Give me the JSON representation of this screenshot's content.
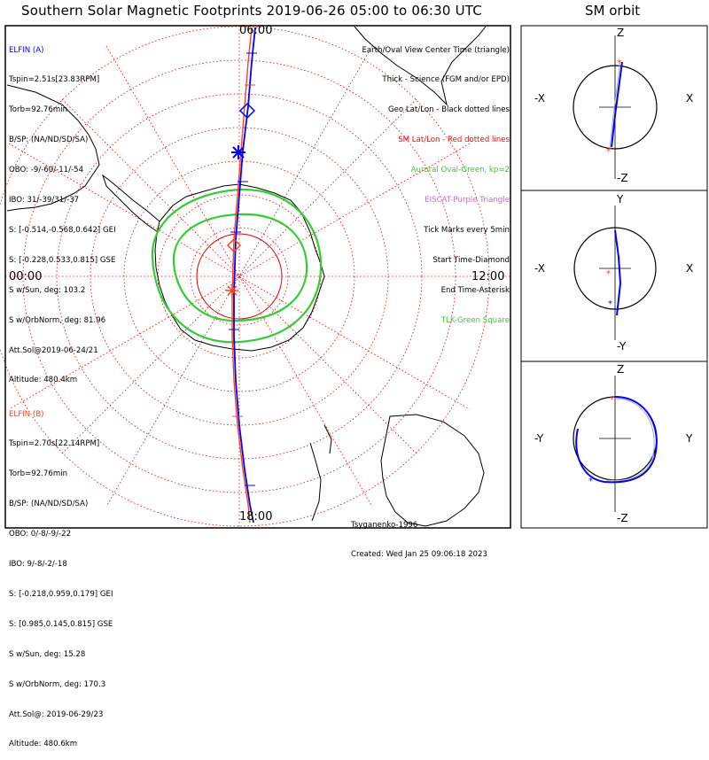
{
  "title": "Southern Solar Magnetic Footprints 2019-06-26 05:00 to 06:30 UTC",
  "orbit_title": "SM orbit",
  "clock_labels": {
    "top": "06:00",
    "left": "00:00",
    "right": "12:00",
    "bottom": "18:00"
  },
  "elfin_a": {
    "lines": [
      "ELFIN (A)",
      "Tspin=2.51s[23.83RPM]",
      "Torb=92.76min",
      "B/SP: (NA/ND/SD/SA)",
      "OBO: -9/-60/-11/-54",
      "IBO: 31/-39/31/-37",
      "S: [-0.514,-0.568,0.642] GEI",
      "S: [-0.228,0.533,0.815] GSE",
      "S w/Sun, deg: 103.2",
      "S w/OrbNorm, deg: 81.96",
      "Att.Sol@2019-06-24/21",
      "Altitude: 480.4km"
    ],
    "color": "#0000ff"
  },
  "elfin_b": {
    "lines": [
      "ELFIN (B)",
      "Tspin=2.70s[22.14RPM]",
      "Torb=92.76min",
      "B/SP: (NA/ND/SD/SA)",
      "OBO: 0/-8/-9/-22",
      "IBO: 9/-8/-2/-18",
      "S: [-0.218,0.959,0.179] GEI",
      "S: [0.985,0.145,0.815] GSE",
      "S w/Sun, deg: 15.28",
      "S w/OrbNorm, deg: 170.3",
      "Att.Sol@: 2019-06-29/23",
      "Altitude: 480.6km"
    ],
    "color": "#ff4020"
  },
  "legend": [
    {
      "text": "Earth/Oval View Center Time (triangle)",
      "color": "#000000"
    },
    {
      "text": "Thick - Science (FGM and/or EPD)",
      "color": "#000000"
    },
    {
      "text": "Geo Lat/Lon - Black dotted lines",
      "color": "#000000"
    },
    {
      "text": "SM Lat/Lon - Red dotted lines",
      "color": "#ff0000"
    },
    {
      "text": "Auroral Oval-Green, kp=2",
      "color": "#33cc33"
    },
    {
      "text": "EISCAT-Purple Triangle",
      "color": "#cc66cc"
    },
    {
      "text": "Tick Marks every 5min",
      "color": "#000000"
    },
    {
      "text": "Start Time-Diamond",
      "color": "#000000"
    },
    {
      "text": "End Time-Asterisk",
      "color": "#000000"
    },
    {
      "text": "TLK-Green Square",
      "color": "#33cc33"
    }
  ],
  "credit": [
    "Tsyganenko-1996",
    "Created: Wed Jan 25 09:06:18 2023"
  ],
  "panels": [
    {
      "top": "Z",
      "bottom": "-Z",
      "left": "-X",
      "right": "X"
    },
    {
      "top": "Y",
      "bottom": "-Y",
      "left": "-X",
      "right": "X"
    },
    {
      "top": "Z",
      "bottom": "-Z",
      "left": "-Y",
      "right": "Y"
    }
  ],
  "colors": {
    "elfin_a": "#0000ff",
    "elfin_b": "#ff4020",
    "sm_grid": "#dd0000",
    "oval": "#33cc33",
    "eiscat": "#cc66cc"
  }
}
